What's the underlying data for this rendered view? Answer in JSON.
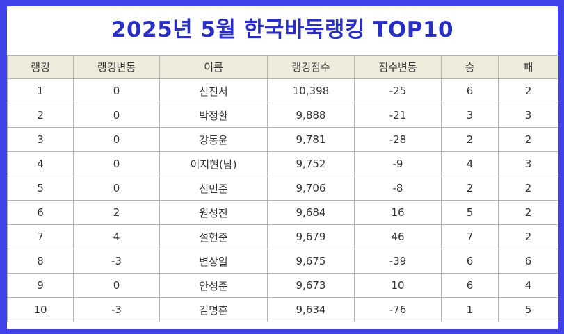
{
  "title": "2025년 5월 한국바둑랭킹 TOP10",
  "table": {
    "headers": [
      "랭킹",
      "랭킹변동",
      "이름",
      "랭킹점수",
      "점수변동",
      "승",
      "패"
    ],
    "rows": [
      [
        "1",
        "0",
        "신진서",
        "10,398",
        "-25",
        "6",
        "2"
      ],
      [
        "2",
        "0",
        "박정환",
        "9,888",
        "-21",
        "3",
        "3"
      ],
      [
        "3",
        "0",
        "강동윤",
        "9,781",
        "-28",
        "2",
        "2"
      ],
      [
        "4",
        "0",
        "이지현(남)",
        "9,752",
        "-9",
        "4",
        "3"
      ],
      [
        "5",
        "0",
        "신민준",
        "9,706",
        "-8",
        "2",
        "2"
      ],
      [
        "6",
        "2",
        "원성진",
        "9,684",
        "16",
        "5",
        "2"
      ],
      [
        "7",
        "4",
        "설현준",
        "9,679",
        "46",
        "7",
        "2"
      ],
      [
        "8",
        "-3",
        "변상일",
        "9,675",
        "-39",
        "6",
        "6"
      ],
      [
        "9",
        "0",
        "안성준",
        "9,673",
        "10",
        "6",
        "4"
      ],
      [
        "10",
        "-3",
        "김명훈",
        "9,634",
        "-76",
        "1",
        "5"
      ]
    ]
  }
}
